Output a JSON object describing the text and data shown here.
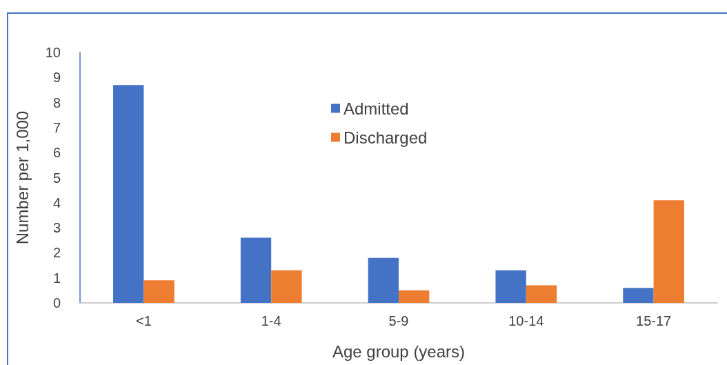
{
  "chart_data": {
    "type": "bar",
    "xlabel": "Age group (years)",
    "ylabel": "Number per 1,000",
    "categories": [
      "<1",
      "1-4",
      "5-9",
      "10-14",
      "15-17"
    ],
    "series": [
      {
        "name": "Admitted",
        "color": "#4472c4",
        "values": [
          8.7,
          2.6,
          1.8,
          1.3,
          0.6
        ]
      },
      {
        "name": "Discharged",
        "color": "#ed7d31",
        "values": [
          0.9,
          1.3,
          0.5,
          0.7,
          4.1
        ]
      }
    ],
    "ylim": [
      0,
      10
    ],
    "yticks": [
      0,
      1,
      2,
      3,
      4,
      5,
      6,
      7,
      8,
      9,
      10
    ],
    "grid": false,
    "legend": "top"
  }
}
